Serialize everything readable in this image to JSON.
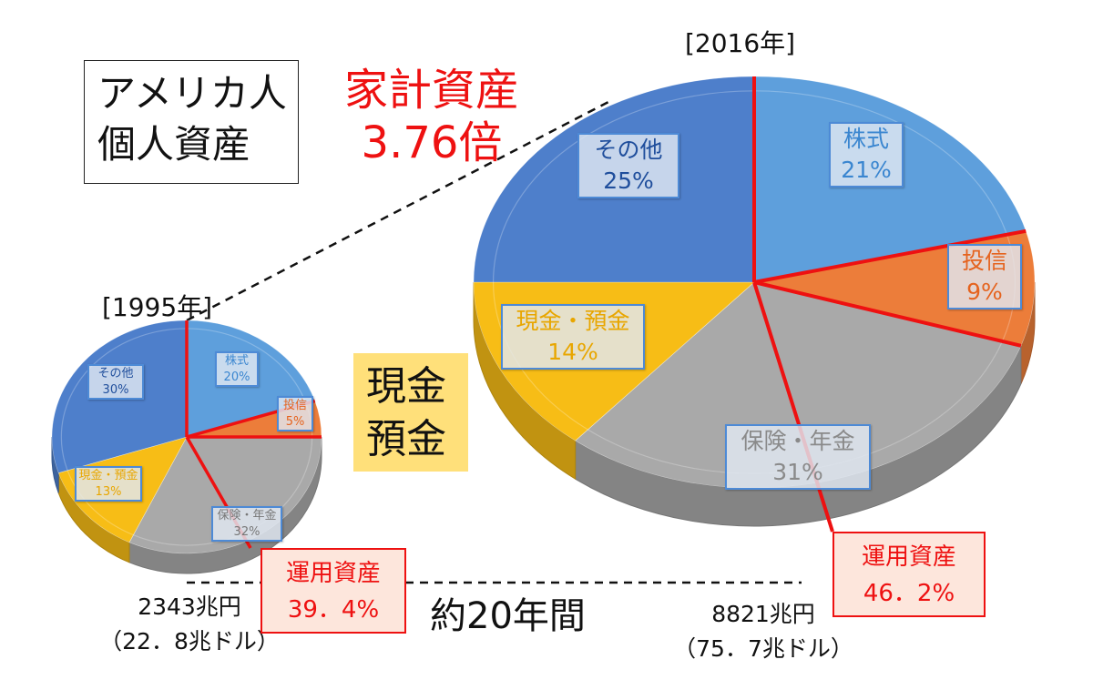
{
  "headline": {
    "title_line1": "アメリカ人",
    "title_line2": "個人資産",
    "multiplier_line1": "家計資産",
    "multiplier_line2": "3.76倍"
  },
  "cash_highlight": {
    "line1": "現金",
    "line2": "預金"
  },
  "period_label": "約20年間",
  "colors": {
    "その他": "#4e7fcb",
    "株式": "#5e9fdc",
    "投信": "#ec7d3a",
    "保険・年金": "#a9a9a9",
    "現金・預金": "#f7bd16",
    "accent": "#ee1111"
  },
  "chart_data": [
    {
      "type": "pie",
      "year_label": "[1995年]",
      "slices": [
        {
          "label": "株式",
          "value": 20,
          "value_label": "20%"
        },
        {
          "label": "投信",
          "value": 5,
          "value_label": "5%"
        },
        {
          "label": "保険・年金",
          "value": 32,
          "value_label": "32%"
        },
        {
          "label": "現金・預金",
          "value": 13,
          "value_label": "13%"
        },
        {
          "label": "その他",
          "value": 30,
          "value_label": "30%"
        }
      ],
      "total_line1": "2343兆円",
      "total_line2": "（22．8兆ドル）",
      "investment_label": "運用資産",
      "investment_share": "39．4%"
    },
    {
      "type": "pie",
      "year_label": "[2016年]",
      "slices": [
        {
          "label": "株式",
          "value": 21,
          "value_label": "21%"
        },
        {
          "label": "投信",
          "value": 9,
          "value_label": "9%"
        },
        {
          "label": "保険・年金",
          "value": 31,
          "value_label": "31%"
        },
        {
          "label": "現金・預金",
          "value": 14,
          "value_label": "14%"
        },
        {
          "label": "その他",
          "value": 25,
          "value_label": "25%"
        }
      ],
      "total_line1": "8821兆円",
      "total_line2": "（75．7兆ドル）",
      "investment_label": "運用資産",
      "investment_share": "46．2%"
    }
  ]
}
